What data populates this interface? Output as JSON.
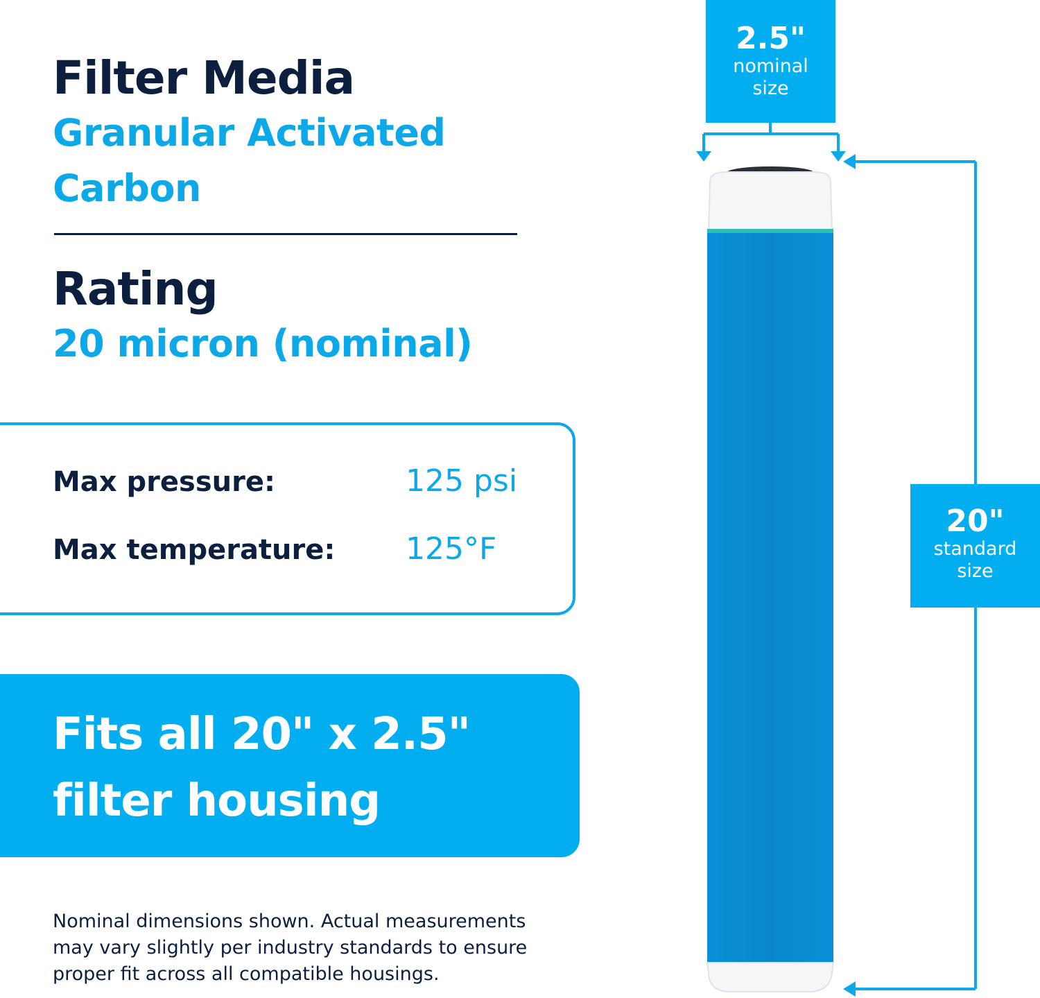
{
  "filter_media": {
    "heading": "Filter Media",
    "value_line_1": "Granular Activated",
    "value_line_2": "Carbon"
  },
  "rating": {
    "heading": "Rating",
    "value": "20 micron (nominal)"
  },
  "specs": [
    {
      "label": "Max pressure:",
      "value": "125 psi"
    },
    {
      "label": "Max temperature:",
      "value": "125°F"
    }
  ],
  "fits_banner": {
    "line_1": "Fits all 20\" x 2.5\"",
    "line_2": "filter housing"
  },
  "disclaimer": [
    "Nominal dimensions shown. Actual measurements",
    "may vary slightly per industry standards to ensure",
    "proper fit across all compatible housings."
  ],
  "dimensions": {
    "width": {
      "value": "2.5\"",
      "line_1": "nominal",
      "line_2": "size"
    },
    "height": {
      "value": "20\"",
      "line_1": "standard",
      "line_2": "size"
    }
  },
  "colors": {
    "navy": "#0d1f3f",
    "accent_blue": "#0ca8e8",
    "banner_blue": "#02aef0",
    "cartridge_blue": "#0a8fd6",
    "end_cap_white": "#f4f6f8"
  }
}
